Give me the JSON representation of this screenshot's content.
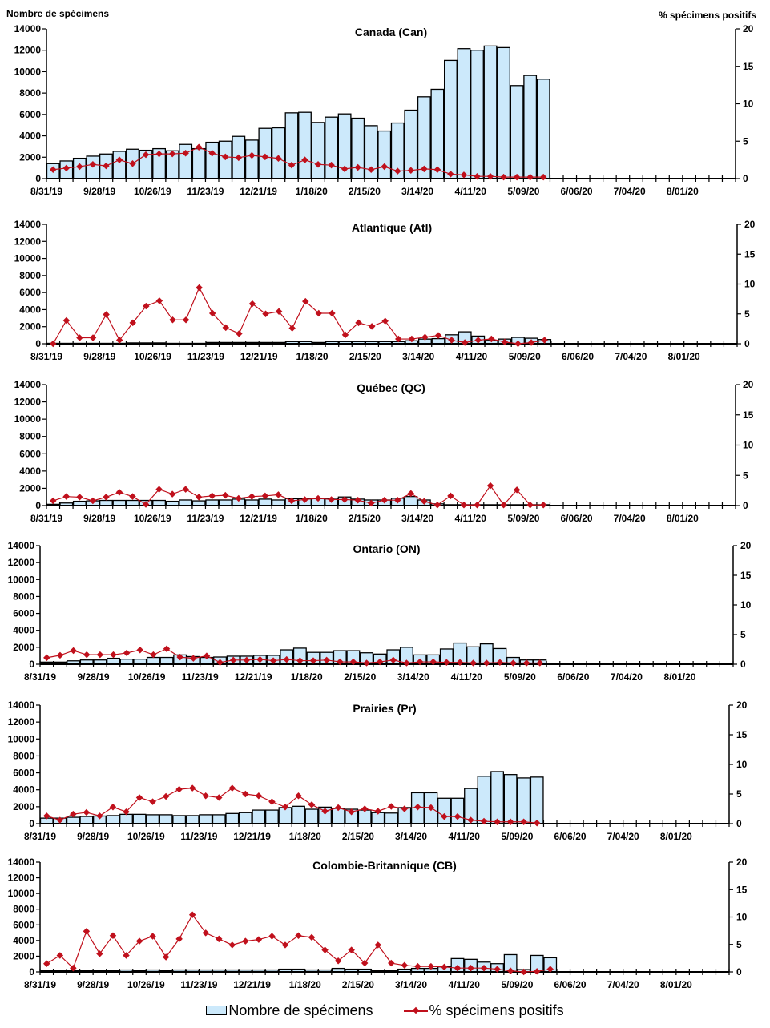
{
  "axis_titles": {
    "left": "Nombre de spécimens",
    "right": "% spécimens positifs"
  },
  "legend": {
    "bars": "Nombre de spécimens",
    "line": "% spécimens positifs"
  },
  "colors": {
    "bar_fill": "#cce9fb",
    "bar_stroke": "#000000",
    "line": "#c0101c"
  },
  "chart_data": [
    {
      "type": "bar",
      "title": "Canada (Can)",
      "ylabel": "Nombre de spécimens",
      "y2label": "% spécimens positifs",
      "ylim": [
        0,
        14000
      ],
      "y2lim": [
        0,
        20
      ],
      "yticks": [
        "0",
        "2000",
        "4000",
        "6000",
        "8000",
        "10000",
        "12000",
        "14000"
      ],
      "y2ticks": [
        "0",
        "5",
        "10",
        "15",
        "20"
      ],
      "xtick_labels": [
        "8/31/19",
        "9/28/19",
        "10/26/19",
        "11/23/19",
        "12/21/19",
        "1/18/20",
        "2/15/20",
        "3/14/20",
        "4/11/20",
        "5/09/20",
        "6/06/20",
        "7/04/20",
        "8/01/20"
      ],
      "n_weeks": 52,
      "series": [
        {
          "name": "Nombre de spécimens",
          "kind": "bar",
          "values": [
            1400,
            1650,
            1900,
            2100,
            2300,
            2550,
            2750,
            2650,
            2800,
            2600,
            3200,
            2800,
            3400,
            3500,
            3950,
            3600,
            4700,
            4750,
            6150,
            6200,
            5250,
            5750,
            6050,
            5650,
            4950,
            4450,
            5200,
            6400,
            7650,
            8350,
            11050,
            12150,
            12000,
            12400,
            12250,
            8700,
            9650,
            9300
          ]
        },
        {
          "name": "% spécimens positifs",
          "kind": "line",
          "values": [
            1.2,
            1.4,
            1.6,
            1.9,
            1.7,
            2.5,
            2.0,
            3.2,
            3.3,
            3.3,
            3.4,
            4.2,
            3.4,
            2.9,
            2.8,
            3.1,
            2.9,
            2.7,
            1.8,
            2.5,
            1.9,
            1.8,
            1.3,
            1.5,
            1.2,
            1.6,
            1.0,
            1.1,
            1.3,
            1.2,
            0.6,
            0.5,
            0.3,
            0.3,
            0.2,
            0.2,
            0.2,
            0.2
          ]
        }
      ]
    },
    {
      "type": "bar",
      "title": "Atlantique (Atl)",
      "ylim": [
        0,
        14000
      ],
      "y2lim": [
        0,
        20
      ],
      "yticks": [
        "0",
        "2000",
        "4000",
        "6000",
        "8000",
        "10000",
        "12000",
        "14000"
      ],
      "y2ticks": [
        "0",
        "5",
        "10",
        "15",
        "20"
      ],
      "xtick_labels": [
        "8/31/19",
        "9/28/19",
        "10/26/19",
        "11/23/19",
        "12/21/19",
        "1/18/20",
        "2/15/20",
        "3/14/20",
        "4/11/20",
        "5/09/20",
        "6/06/20",
        "7/04/20",
        "8/01/20"
      ],
      "n_weeks": 52,
      "series": [
        {
          "name": "Nombre de spécimens",
          "kind": "bar",
          "values": [
            50,
            50,
            50,
            50,
            50,
            50,
            100,
            100,
            100,
            50,
            50,
            50,
            150,
            150,
            150,
            150,
            150,
            150,
            250,
            250,
            150,
            250,
            250,
            250,
            250,
            250,
            250,
            350,
            550,
            600,
            1050,
            1400,
            900,
            400,
            550,
            750,
            650,
            500
          ]
        },
        {
          "name": "% spécimens positifs",
          "kind": "line",
          "values": [
            0,
            3.9,
            1.0,
            1.0,
            4.9,
            0.6,
            3.5,
            6.3,
            7.2,
            4.0,
            4.0,
            9.4,
            5.1,
            2.7,
            1.7,
            6.7,
            5.0,
            5.4,
            2.6,
            7.1,
            5.1,
            5.1,
            1.5,
            3.5,
            2.9,
            3.8,
            0.8,
            0.8,
            1.1,
            1.4,
            0.6,
            0.2,
            0.6,
            0.8,
            0.3,
            0.0,
            0.2,
            0.6
          ]
        }
      ]
    },
    {
      "type": "bar",
      "title": "Québec (QC)",
      "ylim": [
        0,
        14000
      ],
      "y2lim": [
        0,
        20
      ],
      "yticks": [
        "0",
        "2000",
        "4000",
        "6000",
        "8000",
        "10000",
        "12000",
        "14000"
      ],
      "y2ticks": [
        "0",
        "5",
        "10",
        "15",
        "20"
      ],
      "xtick_labels": [
        "8/31/19",
        "9/28/19",
        "10/26/19",
        "11/23/19",
        "12/21/19",
        "1/18/20",
        "2/15/20",
        "3/14/20",
        "4/11/20",
        "5/09/20",
        "6/06/20",
        "7/04/20",
        "8/01/20"
      ],
      "n_weeks": 52,
      "series": [
        {
          "name": "Nombre de spécimens",
          "kind": "bar",
          "values": [
            150,
            300,
            500,
            550,
            600,
            600,
            600,
            600,
            600,
            500,
            650,
            550,
            650,
            650,
            750,
            650,
            750,
            650,
            800,
            800,
            800,
            850,
            1000,
            750,
            650,
            650,
            850,
            1050,
            650,
            200,
            100,
            100,
            100,
            100,
            100,
            100,
            100,
            100
          ]
        },
        {
          "name": "% spécimens positifs",
          "kind": "line",
          "values": [
            0.8,
            1.5,
            1.4,
            0.8,
            1.4,
            2.2,
            1.5,
            0.2,
            2.7,
            1.9,
            2.7,
            1.4,
            1.6,
            1.7,
            1.2,
            1.5,
            1.6,
            1.8,
            0.8,
            1.0,
            1.2,
            1.0,
            1.0,
            0.9,
            0.4,
            0.9,
            0.9,
            2.0,
            0.7,
            0.1,
            1.6,
            0.1,
            0.1,
            3.3,
            0.1,
            2.6,
            0.1,
            0.1
          ]
        }
      ]
    },
    {
      "type": "bar",
      "title": "Ontario (ON)",
      "ylim": [
        0,
        14000
      ],
      "y2lim": [
        0,
        20
      ],
      "yticks": [
        "0",
        "2000",
        "4000",
        "6000",
        "8000",
        "10000",
        "12000",
        "14000"
      ],
      "y2ticks": [
        "0",
        "5",
        "10",
        "15",
        "20"
      ],
      "xtick_labels": [
        "8/31/19",
        "9/28/19",
        "10/26/19",
        "11/23/19",
        "12/21/19",
        "1/18/20",
        "2/15/20",
        "3/14/20",
        "4/11/20",
        "5/09/20",
        "6/06/20",
        "7/04/20",
        "8/01/20"
      ],
      "n_weeks": 52,
      "series": [
        {
          "name": "Nombre de spécimens",
          "kind": "bar",
          "values": [
            250,
            250,
            400,
            500,
            500,
            700,
            600,
            600,
            800,
            800,
            1100,
            900,
            800,
            850,
            950,
            950,
            1050,
            1050,
            1700,
            1900,
            1400,
            1400,
            1600,
            1600,
            1350,
            1200,
            1700,
            2000,
            1100,
            1100,
            1800,
            2500,
            2050,
            2400,
            1850,
            800,
            500,
            500
          ]
        },
        {
          "name": "% spécimens positifs",
          "kind": "line",
          "values": [
            1.1,
            1.5,
            2.3,
            1.6,
            1.6,
            1.6,
            1.9,
            2.4,
            1.6,
            2.6,
            1.2,
            1.0,
            1.4,
            0.3,
            0.7,
            0.7,
            0.8,
            0.6,
            0.8,
            0.6,
            0.6,
            0.7,
            0.4,
            0.4,
            0.2,
            0.4,
            0.7,
            0.2,
            0.4,
            0.4,
            0.3,
            0.3,
            0.2,
            0.2,
            0.3,
            0.2,
            0.2,
            0.2
          ]
        }
      ]
    },
    {
      "type": "bar",
      "title": "Prairies (Pr)",
      "ylim": [
        0,
        14000
      ],
      "y2lim": [
        0,
        20
      ],
      "yticks": [
        "0",
        "2000",
        "4000",
        "6000",
        "8000",
        "10000",
        "12000",
        "14000"
      ],
      "y2ticks": [
        "0",
        "5",
        "10",
        "15",
        "20"
      ],
      "xtick_labels": [
        "8/31/19",
        "9/28/19",
        "10/26/19",
        "11/23/19",
        "12/21/19",
        "1/18/20",
        "2/15/20",
        "3/14/20",
        "4/11/20",
        "5/09/20",
        "6/06/20",
        "7/04/20",
        "8/01/20"
      ],
      "n_weeks": 52,
      "series": [
        {
          "name": "Nombre de spécimens",
          "kind": "bar",
          "values": [
            650,
            650,
            750,
            850,
            900,
            950,
            1100,
            1100,
            1050,
            1050,
            950,
            950,
            1050,
            1050,
            1200,
            1300,
            1600,
            1600,
            1900,
            2050,
            1700,
            1950,
            1800,
            1700,
            1600,
            1300,
            1250,
            1900,
            3650,
            3650,
            3000,
            3000,
            4150,
            5600,
            6150,
            5800,
            5400,
            5500
          ]
        },
        {
          "name": "% spécimens positifs",
          "kind": "line",
          "values": [
            1.3,
            0.6,
            1.6,
            1.9,
            1.3,
            2.8,
            2.0,
            4.4,
            3.7,
            4.6,
            5.8,
            6.0,
            4.7,
            4.4,
            6.0,
            5.0,
            4.7,
            3.7,
            2.8,
            4.7,
            3.2,
            2.1,
            2.7,
            2.0,
            2.5,
            2.1,
            2.9,
            2.5,
            2.8,
            2.7,
            1.2,
            1.2,
            0.6,
            0.4,
            0.3,
            0.3,
            0.3,
            0.1
          ]
        }
      ]
    },
    {
      "type": "bar",
      "title": "Colombie-Britannique (CB)",
      "ylim": [
        0,
        14000
      ],
      "y2lim": [
        0,
        20
      ],
      "yticks": [
        "0",
        "2000",
        "4000",
        "6000",
        "8000",
        "10000",
        "12000",
        "14000"
      ],
      "y2ticks": [
        "0",
        "5",
        "10",
        "15",
        "20"
      ],
      "xtick_labels": [
        "8/31/19",
        "9/28/19",
        "10/26/19",
        "11/23/19",
        "12/21/19",
        "1/18/20",
        "2/15/20",
        "3/14/20",
        "4/11/20",
        "5/09/20",
        "6/06/20",
        "7/04/20",
        "8/01/20"
      ],
      "n_weeks": 52,
      "series": [
        {
          "name": "Nombre de spécimens",
          "kind": "bar",
          "values": [
            150,
            150,
            150,
            150,
            150,
            150,
            250,
            150,
            250,
            150,
            250,
            250,
            250,
            250,
            250,
            250,
            250,
            250,
            350,
            350,
            250,
            250,
            450,
            350,
            350,
            150,
            150,
            350,
            450,
            450,
            650,
            1700,
            1600,
            1250,
            1050,
            2200,
            300,
            2100,
            1800
          ]
        },
        {
          "name": "% spécimens positifs",
          "kind": "line",
          "values": [
            1.5,
            3.0,
            0.7,
            7.4,
            3.3,
            6.6,
            3.0,
            5.6,
            6.5,
            2.7,
            6.0,
            10.4,
            7.1,
            6.0,
            4.9,
            5.6,
            5.9,
            6.5,
            4.9,
            6.6,
            6.3,
            4.0,
            2.0,
            4.0,
            1.6,
            4.9,
            1.6,
            1.2,
            1.0,
            1.0,
            0.9,
            0.7,
            0.7,
            0.7,
            0.5,
            0.2,
            0.0,
            0.1,
            0.5
          ]
        }
      ]
    }
  ]
}
